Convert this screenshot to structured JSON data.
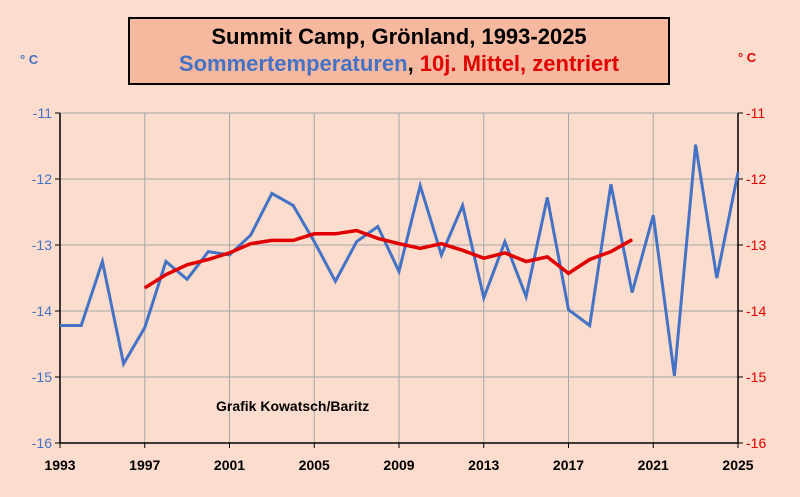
{
  "title": {
    "line1": "Summit Camp, Grönland, 1993-2025",
    "series1": "Sommertemperaturen",
    "separator": ", ",
    "series2": "10j. Mittel, zentriert"
  },
  "units": {
    "left": "° C",
    "right": "° C"
  },
  "credit": "Grafik Kowatsch/Baritz",
  "colors": {
    "background": "#fbdccd",
    "title_box": "#f7b8a0",
    "blue_series": "#4472c4",
    "red_series": "#e00000",
    "grid": "#a6a6a6"
  },
  "chart_data": {
    "type": "line",
    "xlim": [
      1993,
      2025
    ],
    "ylim": [
      -16,
      -11
    ],
    "x_ticks": [
      1993,
      1997,
      2001,
      2005,
      2009,
      2013,
      2017,
      2021,
      2025
    ],
    "y_ticks": [
      -11,
      -12,
      -13,
      -14,
      -15,
      -16
    ],
    "y_tick_labels_left": [
      "-11",
      "-12",
      "-13",
      "-14",
      "-15",
      "-16"
    ],
    "y_tick_labels_right": [
      "-11",
      "-12",
      "-13",
      "-14",
      "-15",
      "-16"
    ],
    "grid": true,
    "series": [
      {
        "name": "Sommertemperaturen",
        "color": "#4472c4",
        "x": [
          1993,
          1994,
          1995,
          1996,
          1997,
          1998,
          1999,
          2000,
          2001,
          2002,
          2003,
          2004,
          2005,
          2006,
          2007,
          2008,
          2009,
          2010,
          2011,
          2012,
          2013,
          2014,
          2015,
          2016,
          2017,
          2018,
          2019,
          2020,
          2021,
          2022,
          2023,
          2024,
          2025
        ],
        "y": [
          -14.22,
          -14.22,
          -13.25,
          -14.8,
          -14.25,
          -13.25,
          -13.52,
          -13.1,
          -13.15,
          -12.85,
          -12.22,
          -12.4,
          -12.95,
          -13.55,
          -12.95,
          -12.72,
          -13.4,
          -12.1,
          -13.15,
          -12.4,
          -13.8,
          -12.95,
          -13.78,
          -12.28,
          -13.98,
          -14.22,
          -12.08,
          -13.72,
          -12.55,
          -14.98,
          -11.48,
          -13.5,
          -11.9
        ]
      },
      {
        "name": "10j. Mittel, zentriert",
        "color": "#e00000",
        "x": [
          1997,
          1998,
          1999,
          2000,
          2001,
          2002,
          2003,
          2004,
          2005,
          2006,
          2007,
          2008,
          2009,
          2010,
          2011,
          2012,
          2013,
          2014,
          2015,
          2016,
          2017,
          2018,
          2019,
          2020
        ],
        "y": [
          -13.65,
          -13.45,
          -13.3,
          -13.22,
          -13.12,
          -12.98,
          -12.93,
          -12.93,
          -12.83,
          -12.83,
          -12.78,
          -12.9,
          -12.98,
          -13.05,
          -12.98,
          -13.08,
          -13.2,
          -13.12,
          -13.25,
          -13.18,
          -13.43,
          -13.22,
          -13.1,
          -12.92
        ]
      }
    ]
  }
}
